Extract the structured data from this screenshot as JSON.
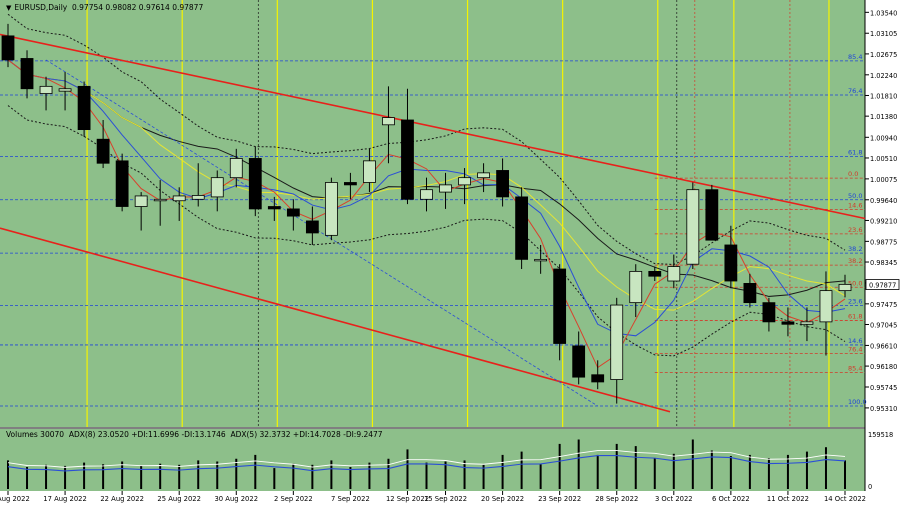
{
  "header": {
    "symbol": "EURUSD,Daily",
    "prices": "0.97754 0.98082 0.97614 0.97877"
  },
  "volume_header": {
    "text": "Volumes 30070  ADX(8) 23.0520 +DI:11.6996 -DI:13.1746  ADX(5) 32.3732 +DI:14.7028 -DI:9.2477"
  },
  "colors": {
    "background": "#8dbf8a",
    "bull": "#c8e6c0",
    "bear": "#000000",
    "trend": "#e8211b",
    "level_blue": "#1e44d8",
    "level_red": "#d23a2a",
    "yellow_line": "#f4f400",
    "price_tag": "#ffffff"
  },
  "chart_data": {
    "type": "candlestick",
    "price_axis_labels": [
      "1.03540",
      "1.03105",
      "1.02675",
      "1.02240",
      "1.01810",
      "1.01380",
      "1.00940",
      "1.00510",
      "1.00075",
      "0.99640",
      "0.99210",
      "0.98775",
      "0.98345",
      "0.97910",
      "0.97475",
      "0.97045",
      "0.96610",
      "0.96180",
      "0.95745",
      "0.95310"
    ],
    "volume_axis_labels": [
      "159518",
      "0"
    ],
    "current_price": "0.97877",
    "ylim": [
      0.951,
      1.0363
    ],
    "date_labels": [
      "12 Aug 2022",
      "17 Aug 2022",
      "22 Aug 2022",
      "25 Aug 2022",
      "30 Aug 2022",
      "2 Sep 2022",
      "7 Sep 2022",
      "12 Sep 2022",
      "15 Sep 2022",
      "20 Sep 2022",
      "23 Sep 2022",
      "28 Sep 2022",
      "3 Oct 2022",
      "6 Oct 2022",
      "11 Oct 2022",
      "14 Oct 2022"
    ],
    "candles": [
      [
        1.0305,
        1.033,
        1.024,
        1.0255
      ],
      [
        1.0258,
        1.0275,
        1.0175,
        1.0195
      ],
      [
        1.0185,
        1.022,
        1.015,
        1.02
      ],
      [
        1.019,
        1.023,
        1.015,
        1.0195
      ],
      [
        1.02,
        1.021,
        1.0095,
        1.011
      ],
      [
        1.009,
        1.013,
        1.003,
        1.004
      ],
      [
        1.0045,
        1.006,
        0.994,
        0.995
      ],
      [
        0.995,
        0.998,
        0.99,
        0.9972
      ],
      [
        0.9965,
        1.0005,
        0.991,
        0.9965
      ],
      [
        0.9962,
        0.999,
        0.992,
        0.9972
      ],
      [
        0.9965,
        1.004,
        0.995,
        0.9973
      ],
      [
        0.997,
        1.0025,
        0.994,
        1.001
      ],
      [
        1.001,
        1.007,
        0.999,
        1.005
      ],
      [
        1.005,
        1.0075,
        0.993,
        0.9945
      ],
      [
        0.995,
        0.997,
        0.992,
        0.9945
      ],
      [
        0.9945,
        0.9965,
        0.99,
        0.993
      ],
      [
        0.992,
        0.995,
        0.987,
        0.9895
      ],
      [
        0.989,
        1.001,
        0.988,
        1.0
      ],
      [
        1.0,
        1.002,
        0.9965,
        0.9995
      ],
      [
        1.0,
        1.007,
        0.998,
        1.0045
      ],
      [
        1.012,
        1.02,
        1.004,
        1.0135
      ],
      [
        1.013,
        1.0195,
        0.9955,
        0.9965
      ],
      [
        0.9965,
        1.001,
        0.994,
        0.9985
      ],
      [
        0.998,
        1.002,
        0.9945,
        0.9995
      ],
      [
        0.9995,
        1.003,
        0.9955,
        1.001
      ],
      [
        1.001,
        1.004,
        0.998,
        1.002
      ],
      [
        1.0025,
        1.005,
        0.995,
        0.997
      ],
      [
        0.997,
        0.999,
        0.982,
        0.984
      ],
      [
        0.984,
        0.987,
        0.981,
        0.984
      ],
      [
        0.982,
        0.983,
        0.963,
        0.9665
      ],
      [
        0.966,
        0.969,
        0.958,
        0.9595
      ],
      [
        0.96,
        0.963,
        0.957,
        0.9585
      ],
      [
        0.959,
        0.976,
        0.954,
        0.9745
      ],
      [
        0.975,
        0.983,
        0.972,
        0.9815
      ],
      [
        0.9815,
        0.9825,
        0.9795,
        0.9805
      ],
      [
        0.9795,
        0.985,
        0.978,
        0.9825
      ],
      [
        0.983,
        1.0,
        0.982,
        0.9985
      ],
      [
        0.9985,
        0.9995,
        0.988,
        0.988
      ],
      [
        0.987,
        0.991,
        0.978,
        0.9795
      ],
      [
        0.979,
        0.981,
        0.974,
        0.975
      ],
      [
        0.975,
        0.976,
        0.969,
        0.971
      ],
      [
        0.971,
        0.974,
        0.968,
        0.9705
      ],
      [
        0.9705,
        0.974,
        0.967,
        0.971
      ],
      [
        0.971,
        0.9815,
        0.964,
        0.9775
      ],
      [
        0.9775,
        0.9808,
        0.9761,
        0.9788
      ]
    ],
    "fib_blue": [
      {
        "label": "85.4",
        "price": 1.0253
      },
      {
        "label": "76.4",
        "price": 1.0182
      },
      {
        "label": "61.8",
        "price": 1.0054
      },
      {
        "label": "50.0",
        "price": 0.9964
      },
      {
        "label": "38.2",
        "price": 0.9853
      },
      {
        "label": "23.6",
        "price": 0.9744
      },
      {
        "label": "14.6",
        "price": 0.9662
      },
      {
        "label": "100.0",
        "price": 0.9535
      }
    ],
    "fib_red": [
      {
        "label": "0.0",
        "price": 1.0009
      },
      {
        "label": "14.6",
        "price": 0.9944
      },
      {
        "label": "23.6",
        "price": 0.9893
      },
      {
        "label": "38.2",
        "price": 0.9828
      },
      {
        "label": "50.0",
        "price": 0.9782
      },
      {
        "label": "61.8",
        "price": 0.9713
      },
      {
        "label": "76.4",
        "price": 0.9644
      },
      {
        "label": "85.4",
        "price": 0.9605
      }
    ],
    "volume_bars": [
      0.52,
      0.4,
      0.44,
      0.42,
      0.48,
      0.45,
      0.5,
      0.42,
      0.46,
      0.44,
      0.52,
      0.5,
      0.55,
      0.62,
      0.38,
      0.46,
      0.44,
      0.52,
      0.4,
      0.48,
      0.55,
      0.72,
      0.48,
      0.5,
      0.52,
      0.44,
      0.62,
      0.68,
      0.45,
      0.82,
      0.9,
      0.62,
      0.82,
      0.78,
      0.56,
      0.64,
      0.9,
      0.7,
      0.6,
      0.62,
      0.56,
      0.62,
      0.68,
      0.76,
      0.52
    ]
  }
}
